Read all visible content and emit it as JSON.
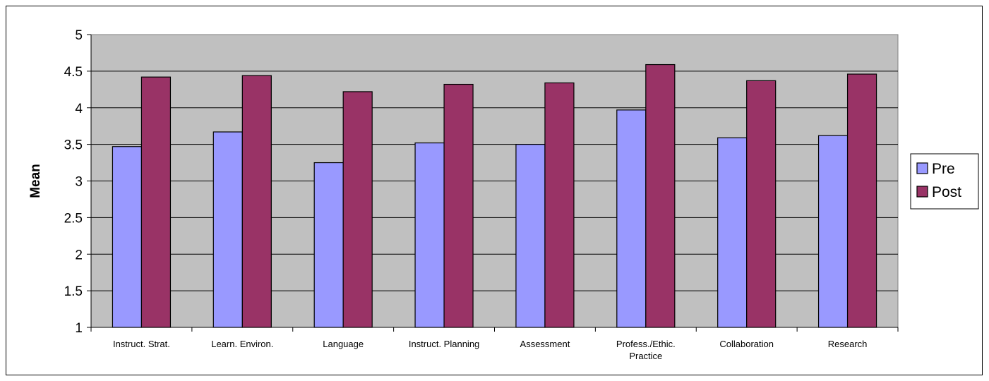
{
  "chart_data": {
    "type": "bar",
    "title": "",
    "xlabel": "",
    "ylabel": "Mean",
    "ylim": [
      1,
      5
    ],
    "yticks": [
      "1",
      "1.5",
      "2",
      "2.5",
      "3",
      "3.5",
      "4",
      "4.5",
      "5"
    ],
    "categories": [
      [
        "Instruct. Strat."
      ],
      [
        "Learn. Environ."
      ],
      [
        "Language"
      ],
      [
        "Instruct. Planning"
      ],
      [
        "Assessment"
      ],
      [
        "Profess./Ethic.",
        "Practice"
      ],
      [
        "Collaboration"
      ],
      [
        "Research"
      ]
    ],
    "series": [
      {
        "name": "Pre",
        "color": "#9999FF",
        "values": [
          3.47,
          3.67,
          3.25,
          3.52,
          3.5,
          3.97,
          3.59,
          3.62
        ]
      },
      {
        "name": "Post",
        "color": "#993366",
        "values": [
          4.42,
          4.44,
          4.22,
          4.32,
          4.34,
          4.59,
          4.37,
          4.46
        ]
      }
    ],
    "grid": true,
    "plot_background": "#C0C0C0",
    "legend": "right"
  }
}
